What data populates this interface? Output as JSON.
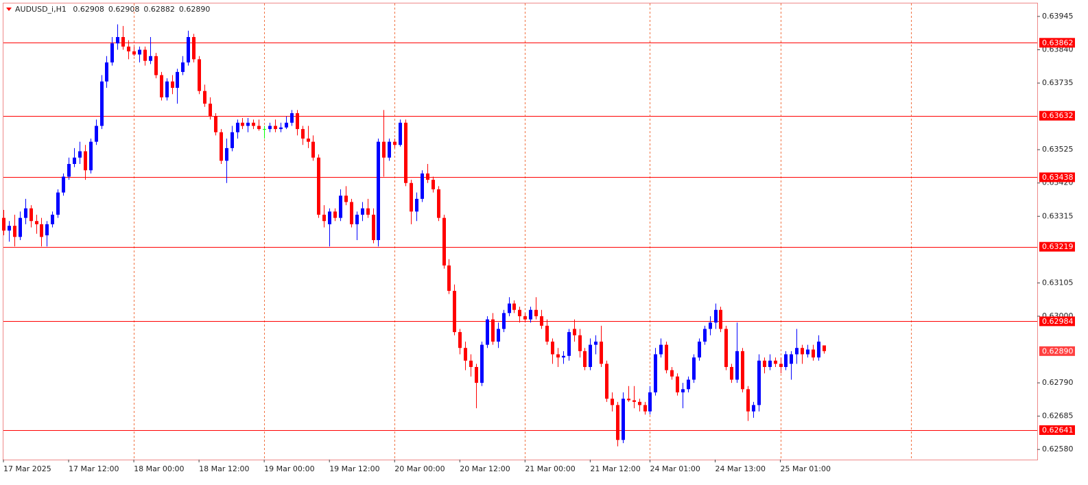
{
  "chart_data": {
    "type": "candlestick",
    "title": "AUDUSD_i,H1",
    "header_values": [
      "0.62908",
      "0.62908",
      "0.62882",
      "0.62890"
    ],
    "bull_color": "#0000ff",
    "bear_color": "#ff0000",
    "doji_color": "#00ff00",
    "level_color": "#ff0000",
    "grid_color": "#f07040",
    "grid": true,
    "ylim": [
      0.62548,
      0.63986
    ],
    "yticks": [
      0.63945,
      {
        "value": 0.6384,
        "label": "0.63840"
      },
      0.63735,
      0.63525,
      {
        "value": 0.6342,
        "label": "0.63420"
      },
      0.63315,
      0.63105,
      {
        "value": 0.63,
        "label": "0.63000"
      },
      {
        "value": 0.6279,
        "label": "0.62790"
      },
      0.62685,
      {
        "value": 0.6258,
        "label": "0.62580"
      }
    ],
    "levels": [
      0.63862,
      0.63632,
      0.63438,
      0.63219,
      0.62984,
      0.62641
    ],
    "current_price": {
      "value": 0.6289,
      "label": "0.62890"
    },
    "xticks": [
      {
        "value": 0,
        "label": "17 Mar 2025"
      },
      {
        "value": 12,
        "label": "17 Mar 12:00"
      },
      {
        "value": 24,
        "label": "18 Mar 00:00"
      },
      {
        "value": 36,
        "label": "18 Mar 12:00"
      },
      {
        "value": 48,
        "label": "19 Mar 00:00"
      },
      {
        "value": 60,
        "label": "19 Mar 12:00"
      },
      {
        "value": 72,
        "label": "20 Mar 00:00"
      },
      {
        "value": 84,
        "label": "20 Mar 12:00"
      },
      {
        "value": 96,
        "label": "21 Mar 00:00"
      },
      {
        "value": 108,
        "label": "21 Mar 12:00"
      },
      {
        "value": 119,
        "label": "24 Mar 01:00"
      },
      {
        "value": 131,
        "label": "24 Mar 13:00"
      },
      {
        "value": 143,
        "label": "25 Mar 01:00"
      }
    ],
    "vgrid": [
      24,
      48,
      72,
      96,
      119,
      143,
      167
    ],
    "open": [
      0.6331,
      0.6327,
      0.63285,
      0.6325,
      0.6331,
      0.6334,
      0.633,
      0.6329,
      0.63255,
      0.6329,
      0.6332,
      0.6339,
      0.6344,
      0.6348,
      0.635,
      0.6352,
      0.6346,
      0.6355,
      0.636,
      0.6374,
      0.638,
      0.6386,
      0.6388,
      0.6385,
      0.63835,
      0.63825,
      0.6384,
      0.63805,
      0.6382,
      0.6376,
      0.6369,
      0.6374,
      0.6372,
      0.6377,
      0.638,
      0.6388,
      0.6381,
      0.6371,
      0.6367,
      0.6363,
      0.6358,
      0.6349,
      0.6353,
      0.6358,
      0.6361,
      0.636,
      0.6361,
      0.636,
      0.6359,
      0.6359,
      0.636,
      0.6359,
      0.63595,
      0.6361,
      0.6364,
      0.6359,
      0.6356,
      0.6355,
      0.635,
      0.6332,
      0.6329,
      0.6333,
      0.6331,
      0.6338,
      0.6336,
      0.6329,
      0.6332,
      0.6334,
      0.6332,
      0.6324,
      0.6355,
      0.635,
      0.6355,
      0.6354,
      0.6361,
      0.6342,
      0.6333,
      0.6337,
      0.6345,
      0.6343,
      0.634,
      0.6331,
      0.6316,
      0.6308,
      0.6295,
      0.629,
      0.6286,
      0.6284,
      0.6279,
      0.6291,
      0.6299,
      0.6292,
      0.6296,
      0.6301,
      0.6304,
      0.6302,
      0.63,
      0.6299,
      0.6302,
      0.63,
      0.6297,
      0.6292,
      0.6288,
      0.6287,
      0.62875,
      0.6296,
      0.6294,
      0.6289,
      0.6284,
      0.6291,
      0.6292,
      0.6285,
      0.6274,
      0.6272,
      0.6261,
      0.6274,
      0.62735,
      0.6273,
      0.6272,
      0.627,
      0.6276,
      0.6288,
      0.6291,
      0.6283,
      0.6281,
      0.6276,
      0.6277,
      0.628,
      0.6287,
      0.6292,
      0.6296,
      0.6298,
      0.6302,
      0.6296,
      0.6284,
      0.628,
      0.6289,
      0.6277,
      0.627,
      0.6272,
      0.6286,
      0.6284,
      0.6286,
      0.6285,
      0.6284,
      0.6285,
      0.6288,
      0.629,
      0.6288,
      0.62895,
      0.6287,
      0.62908
    ],
    "high": [
      0.63335,
      0.633,
      0.6332,
      0.6333,
      0.6337,
      0.6335,
      0.6332,
      0.6331,
      0.633,
      0.6333,
      0.634,
      0.6345,
      0.635,
      0.6353,
      0.6355,
      0.6354,
      0.6356,
      0.6362,
      0.6376,
      0.6382,
      0.6388,
      0.6392,
      0.63915,
      0.6387,
      0.6385,
      0.6385,
      0.6385,
      0.6388,
      0.6383,
      0.6377,
      0.6375,
      0.6376,
      0.6378,
      0.6382,
      0.639,
      0.6389,
      0.6382,
      0.6373,
      0.6369,
      0.6364,
      0.6359,
      0.6356,
      0.636,
      0.6362,
      0.63625,
      0.63625,
      0.6362,
      0.6362,
      0.636,
      0.6361,
      0.6362,
      0.6361,
      0.6363,
      0.6365,
      0.6365,
      0.636,
      0.636,
      0.6357,
      0.6351,
      0.6335,
      0.6334,
      0.6334,
      0.634,
      0.6341,
      0.6337,
      0.6333,
      0.6336,
      0.6337,
      0.6334,
      0.6356,
      0.6365,
      0.6356,
      0.6356,
      0.6362,
      0.6362,
      0.6343,
      0.6339,
      0.6346,
      0.6348,
      0.6344,
      0.6341,
      0.6332,
      0.6318,
      0.631,
      0.6296,
      0.6292,
      0.6288,
      0.6285,
      0.6292,
      0.63,
      0.6301,
      0.6298,
      0.6302,
      0.6306,
      0.6305,
      0.6303,
      0.6301,
      0.6303,
      0.6306,
      0.6302,
      0.6299,
      0.6293,
      0.629,
      0.6289,
      0.6296,
      0.6299,
      0.6296,
      0.629,
      0.6293,
      0.6294,
      0.6297,
      0.6286,
      0.6276,
      0.6273,
      0.6276,
      0.6278,
      0.6278,
      0.6274,
      0.6273,
      0.6278,
      0.629,
      0.6293,
      0.6292,
      0.6284,
      0.6282,
      0.6279,
      0.6281,
      0.6288,
      0.6293,
      0.6297,
      0.63,
      0.6304,
      0.6303,
      0.6297,
      0.6285,
      0.6298,
      0.629,
      0.6278,
      0.6273,
      0.6288,
      0.6287,
      0.6288,
      0.6287,
      0.6287,
      0.6289,
      0.6289,
      0.6296,
      0.6291,
      0.6291,
      0.6291,
      0.6294,
      0.62908
    ],
    "low": [
      0.63255,
      0.63235,
      0.6322,
      0.6324,
      0.6329,
      0.6328,
      0.6326,
      0.6322,
      0.6322,
      0.6328,
      0.6331,
      0.6338,
      0.6343,
      0.6347,
      0.6348,
      0.6343,
      0.6345,
      0.6354,
      0.6359,
      0.6372,
      0.6379,
      0.6384,
      0.6384,
      0.6381,
      0.6382,
      0.638,
      0.6379,
      0.63795,
      0.6375,
      0.6368,
      0.6368,
      0.637,
      0.6367,
      0.6376,
      0.6379,
      0.638,
      0.637,
      0.6366,
      0.6362,
      0.6357,
      0.6348,
      0.6342,
      0.6352,
      0.6356,
      0.6359,
      0.6358,
      0.6359,
      0.63585,
      0.6356,
      0.6358,
      0.6358,
      0.6358,
      0.6359,
      0.636,
      0.6357,
      0.6354,
      0.6353,
      0.6349,
      0.6331,
      0.6328,
      0.6322,
      0.633,
      0.633,
      0.6335,
      0.6328,
      0.6324,
      0.633,
      0.6331,
      0.6323,
      0.6322,
      0.6344,
      0.6349,
      0.6353,
      0.63535,
      0.6341,
      0.6329,
      0.633,
      0.6336,
      0.6342,
      0.6339,
      0.633,
      0.6315,
      0.6307,
      0.6294,
      0.6288,
      0.6283,
      0.6281,
      0.6271,
      0.6278,
      0.629,
      0.6291,
      0.629,
      0.6295,
      0.63,
      0.6301,
      0.6298,
      0.6298,
      0.6298,
      0.6299,
      0.6296,
      0.6291,
      0.6285,
      0.6284,
      0.6285,
      0.6286,
      0.6292,
      0.6287,
      0.6283,
      0.6283,
      0.6288,
      0.6284,
      0.6273,
      0.627,
      0.6259,
      0.626,
      0.6273,
      0.6271,
      0.627,
      0.6269,
      0.6269,
      0.6275,
      0.6287,
      0.6282,
      0.628,
      0.6275,
      0.6271,
      0.6276,
      0.6279,
      0.6286,
      0.6291,
      0.6294,
      0.6296,
      0.6295,
      0.6283,
      0.6279,
      0.6279,
      0.6276,
      0.6267,
      0.6268,
      0.627,
      0.6282,
      0.6283,
      0.6284,
      0.6282,
      0.6283,
      0.628,
      0.6285,
      0.6285,
      0.6287,
      0.6286,
      0.6286,
      0.62882
    ],
    "close": [
      0.6327,
      0.63285,
      0.6325,
      0.6331,
      0.6334,
      0.633,
      0.6329,
      0.6325,
      0.6329,
      0.6332,
      0.6339,
      0.6344,
      0.6348,
      0.635,
      0.6352,
      0.6346,
      0.6355,
      0.636,
      0.6374,
      0.638,
      0.6386,
      0.6388,
      0.6385,
      0.63835,
      0.63825,
      0.6384,
      0.63805,
      0.6382,
      0.6376,
      0.6369,
      0.6374,
      0.6372,
      0.6377,
      0.638,
      0.6388,
      0.6381,
      0.6371,
      0.6367,
      0.6363,
      0.6358,
      0.6349,
      0.6353,
      0.6358,
      0.6361,
      0.636,
      0.6361,
      0.636,
      0.6359,
      0.6359,
      0.636,
      0.6359,
      0.63595,
      0.6361,
      0.6364,
      0.6359,
      0.6356,
      0.6355,
      0.635,
      0.6332,
      0.633,
      0.6333,
      0.6331,
      0.6338,
      0.6336,
      0.6329,
      0.6332,
      0.6334,
      0.6332,
      0.6324,
      0.6355,
      0.635,
      0.6355,
      0.6354,
      0.6361,
      0.6342,
      0.6333,
      0.6337,
      0.6345,
      0.6343,
      0.634,
      0.6331,
      0.6316,
      0.6308,
      0.6295,
      0.629,
      0.6286,
      0.6284,
      0.6279,
      0.6291,
      0.6299,
      0.6292,
      0.6296,
      0.6301,
      0.6304,
      0.6302,
      0.63,
      0.6299,
      0.6302,
      0.63,
      0.6297,
      0.6292,
      0.6288,
      0.6287,
      0.62875,
      0.6295,
      0.6294,
      0.6289,
      0.6284,
      0.6291,
      0.6292,
      0.6285,
      0.6274,
      0.6272,
      0.6261,
      0.6274,
      0.62735,
      0.6273,
      0.6272,
      0.627,
      0.6276,
      0.6288,
      0.6291,
      0.6283,
      0.6281,
      0.6276,
      0.6277,
      0.628,
      0.6287,
      0.6292,
      0.6296,
      0.6298,
      0.6302,
      0.6296,
      0.6284,
      0.628,
      0.6289,
      0.6277,
      0.627,
      0.6272,
      0.6286,
      0.6284,
      0.6286,
      0.6285,
      0.6284,
      0.6288,
      0.6288,
      0.629,
      0.6288,
      0.62895,
      0.6287,
      0.6292,
      0.6289
    ]
  }
}
